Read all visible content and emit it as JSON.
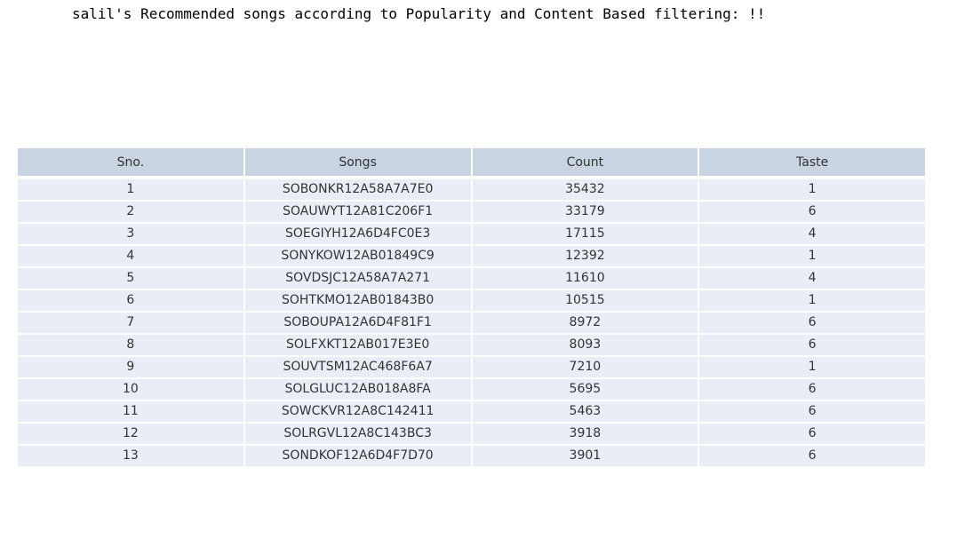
{
  "heading": "salil's Recommended songs according to Popularity and Content Based filtering: !!",
  "table": {
    "columns": [
      "Sno.",
      "Songs",
      "Count",
      "Taste"
    ],
    "rows": [
      [
        "1",
        "SOBONKR12A58A7A7E0",
        "35432",
        "1"
      ],
      [
        "2",
        "SOAUWYT12A81C206F1",
        "33179",
        "6"
      ],
      [
        "3",
        "SOEGIYH12A6D4FC0E3",
        "17115",
        "4"
      ],
      [
        "4",
        "SONYKOW12AB01849C9",
        "12392",
        "1"
      ],
      [
        "5",
        "SOVDSJC12A58A7A271",
        "11610",
        "4"
      ],
      [
        "6",
        "SOHTKMO12AB01843B0",
        "10515",
        "1"
      ],
      [
        "7",
        "SOBOUPA12A6D4F81F1",
        "8972",
        "6"
      ],
      [
        "8",
        "SOLFXKT12AB017E3E0",
        "8093",
        "6"
      ],
      [
        "9",
        "SOUVTSM12AC468F6A7",
        "7210",
        "1"
      ],
      [
        "10",
        "SOLGLUC12AB018A8FA",
        "5695",
        "6"
      ],
      [
        "11",
        "SOWCKVR12A8C142411",
        "5463",
        "6"
      ],
      [
        "12",
        "SOLRGVL12A8C143BC3",
        "3918",
        "6"
      ],
      [
        "13",
        "SONDKOF12A6D4F7D70",
        "3901",
        "6"
      ]
    ]
  },
  "colors": {
    "header_bg": "#c9d4e3",
    "row_bg": "#e9edf5",
    "text": "#333333"
  }
}
